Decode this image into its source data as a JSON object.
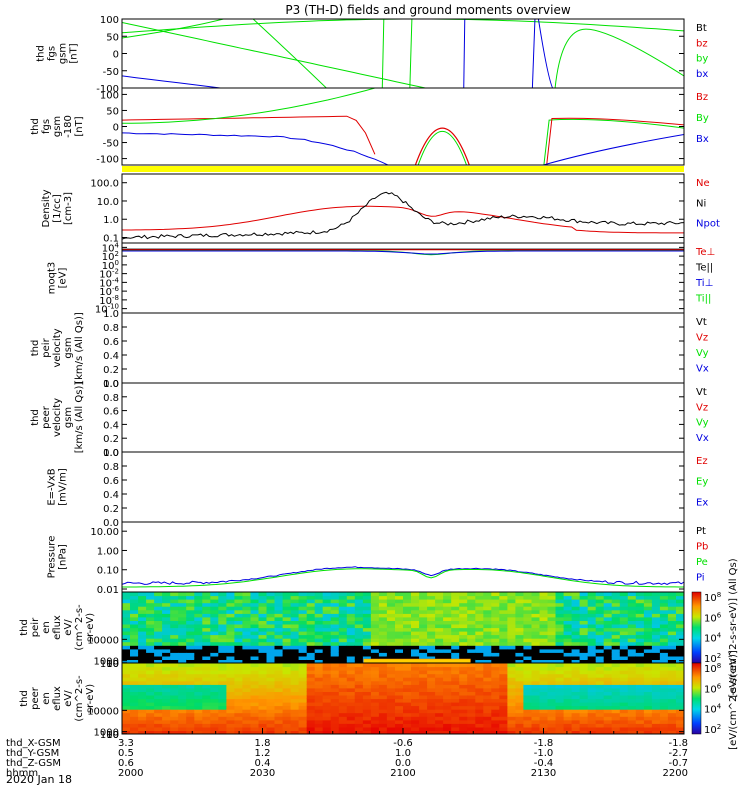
{
  "title": "P3 (TH-D) fields and ground moments overview",
  "date_label": "2020 Jan 18",
  "colors": {
    "black": "#000000",
    "red": "#e00000",
    "green": "#00e000",
    "blue": "#0000e0",
    "yellow": "#ffff00"
  },
  "chart_data": [
    {
      "id": "p1",
      "type": "line",
      "ylabel": [
        "thd",
        "fgs",
        "gsm",
        "[nT]"
      ],
      "yticks": [
        "100",
        "50",
        "0",
        "-50",
        "-100"
      ],
      "ylim": [
        -100,
        100
      ],
      "legend": [
        {
          "name": "Bt",
          "color": "black"
        },
        {
          "name": "bz",
          "color": "red"
        },
        {
          "name": "by",
          "color": "green"
        },
        {
          "name": "bx",
          "color": "blue"
        }
      ]
    },
    {
      "id": "p2",
      "type": "line",
      "ylabel": [
        "thd",
        "fgs",
        "gsm",
        "-180",
        "[nT]"
      ],
      "yticks": [
        "100",
        "50",
        "0",
        "-50",
        "-100"
      ],
      "ylim": [
        -120,
        120
      ],
      "legend": [
        {
          "name": "Bz",
          "color": "red"
        },
        {
          "name": "By",
          "color": "green"
        },
        {
          "name": "Bx",
          "color": "blue"
        }
      ]
    },
    {
      "id": "p3",
      "type": "line",
      "log": true,
      "ylabel": [
        "Density",
        "[1/cc]",
        "[cm-3]"
      ],
      "yticks": [
        "100.0",
        "10.0",
        "1.0",
        "0.1"
      ],
      "ylim": [
        0.05,
        300
      ],
      "legend": [
        {
          "name": "Ne",
          "color": "red"
        },
        {
          "name": "Ni",
          "color": "black"
        },
        {
          "name": "Npot",
          "color": "blue"
        }
      ]
    },
    {
      "id": "p4",
      "type": "line",
      "log": true,
      "ylabel": [
        "moqt3",
        "[eV]"
      ],
      "yticks": [
        "10^4",
        "10^2",
        "10^0",
        "10^-2",
        "10^-4",
        "10^-6",
        "10^-8",
        "10^-10"
      ],
      "ylim": [
        1e-11,
        100000.0
      ],
      "legend": [
        {
          "name": "Te⊥",
          "color": "red"
        },
        {
          "name": "Te||",
          "color": "black"
        },
        {
          "name": "Ti⊥",
          "color": "blue"
        },
        {
          "name": "Ti||",
          "color": "green"
        }
      ]
    },
    {
      "id": "p5",
      "type": "line",
      "ylabel": [
        "thd",
        "peir",
        "velocity",
        "gsm",
        "[km/s (All Qs)]"
      ],
      "yticks": [
        "1.0",
        "0.8",
        "0.6",
        "0.4",
        "0.2",
        "0.0"
      ],
      "ylim": [
        0,
        1
      ],
      "legend": [
        {
          "name": "Vt",
          "color": "black"
        },
        {
          "name": "Vz",
          "color": "red"
        },
        {
          "name": "Vy",
          "color": "green"
        },
        {
          "name": "Vx",
          "color": "blue"
        }
      ]
    },
    {
      "id": "p6",
      "type": "line",
      "ylabel": [
        "thd",
        "peer",
        "velocity",
        "gsm",
        "[km/s (All Qs)]"
      ],
      "yticks": [
        "1.0",
        "0.8",
        "0.6",
        "0.4",
        "0.2",
        "0.0"
      ],
      "ylim": [
        0,
        1
      ],
      "legend": [
        {
          "name": "Vt",
          "color": "black"
        },
        {
          "name": "Vz",
          "color": "red"
        },
        {
          "name": "Vy",
          "color": "green"
        },
        {
          "name": "Vx",
          "color": "blue"
        }
      ]
    },
    {
      "id": "p7",
      "type": "line",
      "ylabel": [
        "E=-VxB",
        "[mV/m]"
      ],
      "yticks": [
        "1.0",
        "0.8",
        "0.6",
        "0.4",
        "0.2",
        "0.0"
      ],
      "ylim": [
        0,
        1
      ],
      "legend": [
        {
          "name": "Ez",
          "color": "red"
        },
        {
          "name": "Ey",
          "color": "green"
        },
        {
          "name": "Ex",
          "color": "blue"
        }
      ]
    },
    {
      "id": "p8",
      "type": "line",
      "log": true,
      "ylabel": [
        "Pressure",
        "[nPa]"
      ],
      "yticks": [
        "10.00",
        "1.00",
        "0.10",
        "0.01"
      ],
      "ylim": [
        0.007,
        30
      ],
      "legend": [
        {
          "name": "Pt",
          "color": "black"
        },
        {
          "name": "Pb",
          "color": "red"
        },
        {
          "name": "Pe",
          "color": "green"
        },
        {
          "name": "Pi",
          "color": "blue"
        }
      ]
    },
    {
      "id": "p9",
      "type": "heatmap",
      "ylabel": [
        "thd",
        "peir",
        "en",
        "eflux",
        "eV/",
        "(cm^2-s-",
        "sr-eV)"
      ],
      "yticks": [
        "10000",
        "1000",
        "100",
        "10"
      ],
      "ylim": [
        5,
        30000
      ]
    },
    {
      "id": "p10",
      "type": "heatmap",
      "ylabel": [
        "thd",
        "peer",
        "en",
        "eflux",
        "eV/",
        "(cm^2-s-",
        "sr-eV)"
      ],
      "yticks": [
        "10000",
        "1000",
        "100",
        "10"
      ],
      "ylim": [
        5,
        30000
      ]
    }
  ],
  "colorbar": {
    "upper_label": "[eV/(cm^2-s-sr-eV)] (All Qs)",
    "lower_label": "[eV/(cm^2-s-sr-eV)]",
    "ticks": [
      "10^8",
      "10^6",
      "10^4",
      "10^2"
    ]
  },
  "xaxis": {
    "row_labels": [
      "thd_X-GSM",
      "thd_Y-GSM",
      "thd_Z-GSM",
      "hhmm"
    ],
    "columns": [
      {
        "vals": [
          "3.3",
          "0.5",
          "0.6",
          "2000"
        ]
      },
      {
        "vals": [
          "1.8",
          "1.2",
          "0.4",
          "2030"
        ]
      },
      {
        "vals": [
          "-0.6",
          "1.0",
          "0.0",
          "2100"
        ]
      },
      {
        "vals": [
          "-1.8",
          "-1.0",
          "-0.4",
          "2130"
        ]
      },
      {
        "vals": [
          "-1.8",
          "-2.7",
          "-0.7",
          "2200"
        ]
      }
    ]
  }
}
